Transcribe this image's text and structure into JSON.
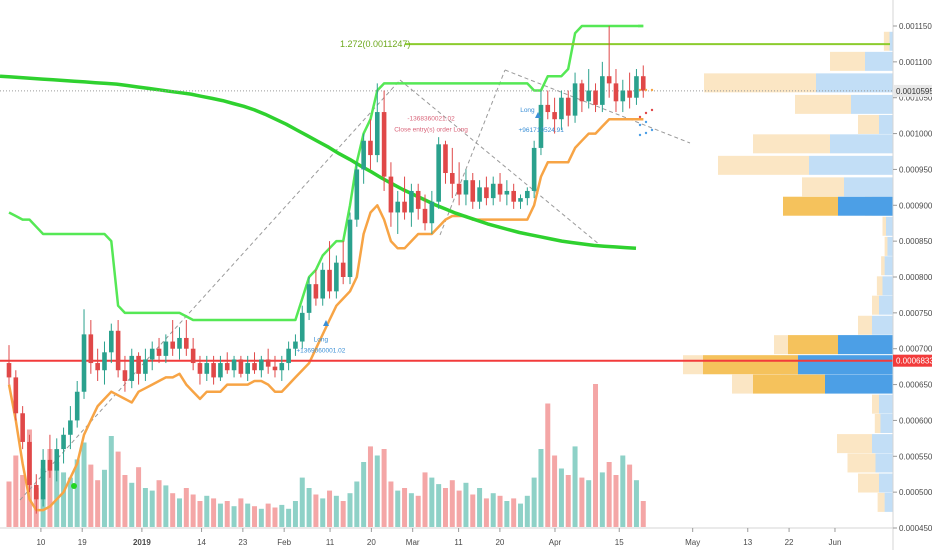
{
  "chart_data": {
    "type": "candlestick",
    "instrument_type": "price chart with volume and volume profile",
    "y_axis": {
      "range": [
        0.00043,
        0.00118
      ],
      "ticks": [
        "0.0011500",
        "0.0011000",
        "0.0010500",
        "0.0010000",
        "0.0009500",
        "0.0009000",
        "0.0008500",
        "0.0008000",
        "0.0007500",
        "0.0007000",
        "0.0006500",
        "0.0006000",
        "0.0005500",
        "0.0005000",
        "0.0004500"
      ]
    },
    "x_axis": {
      "ticks": [
        {
          "label": "10",
          "day": 10
        },
        {
          "label": "19",
          "day": 19
        },
        {
          "label": "2019",
          "day": 32
        },
        {
          "label": "14",
          "day": 45
        },
        {
          "label": "23",
          "day": 54
        },
        {
          "label": "Feb",
          "day": 63
        },
        {
          "label": "11",
          "day": 73
        },
        {
          "label": "20",
          "day": 82
        },
        {
          "label": "Mar",
          "day": 91
        },
        {
          "label": "11",
          "day": 101
        },
        {
          "label": "20",
          "day": 110
        },
        {
          "label": "Apr",
          "day": 122
        },
        {
          "label": "15",
          "day": 136
        },
        {
          "label": "May",
          "day": 152
        },
        {
          "label": "13",
          "day": 164
        },
        {
          "label": "22",
          "day": 173
        },
        {
          "label": "Jun",
          "day": 183
        }
      ]
    },
    "price_labels": {
      "last": "0.0010595",
      "support": "0.0006833"
    },
    "support_level": 0.0006833,
    "fib_level": {
      "label": "1.272(0.0011247)",
      "value": 0.0011247
    },
    "annotations": [
      {
        "text": "Long",
        "day": 71,
        "price": 0.00071
      },
      {
        "text": "+1369060001.02",
        "day": 71,
        "price": 0.000695
      },
      {
        "text": "-1368360021.02",
        "day": 95,
        "price": 0.001018
      },
      {
        "text": "Close entry(s) order Long",
        "day": 95,
        "price": 0.001003
      },
      {
        "text": "Long",
        "day": 116,
        "price": 0.00103
      },
      {
        "text": "+961710524.91",
        "day": 119,
        "price": 0.001002
      }
    ],
    "candles": [
      {
        "o": 0.00068,
        "h": 0.000705,
        "l": 0.00065,
        "c": 0.00066
      },
      {
        "o": 0.00066,
        "h": 0.00067,
        "l": 0.0006,
        "c": 0.00061
      },
      {
        "o": 0.00061,
        "h": 0.00062,
        "l": 0.00056,
        "c": 0.00057
      },
      {
        "o": 0.00057,
        "h": 0.00058,
        "l": 0.0005,
        "c": 0.00051
      },
      {
        "o": 0.00051,
        "h": 0.000525,
        "l": 0.00047,
        "c": 0.00049
      },
      {
        "o": 0.00049,
        "h": 0.00056,
        "l": 0.00048,
        "c": 0.000545
      },
      {
        "o": 0.000545,
        "h": 0.00058,
        "l": 0.00052,
        "c": 0.00053
      },
      {
        "o": 0.00053,
        "h": 0.000575,
        "l": 0.000515,
        "c": 0.00056
      },
      {
        "o": 0.00056,
        "h": 0.00059,
        "l": 0.00054,
        "c": 0.00058
      },
      {
        "o": 0.00058,
        "h": 0.00062,
        "l": 0.00056,
        "c": 0.0006
      },
      {
        "o": 0.0006,
        "h": 0.000655,
        "l": 0.00059,
        "c": 0.00064
      },
      {
        "o": 0.00064,
        "h": 0.000755,
        "l": 0.00063,
        "c": 0.00072
      },
      {
        "o": 0.00072,
        "h": 0.00074,
        "l": 0.000665,
        "c": 0.00068
      },
      {
        "o": 0.00068,
        "h": 0.0007,
        "l": 0.000655,
        "c": 0.00067
      },
      {
        "o": 0.00067,
        "h": 0.00071,
        "l": 0.00065,
        "c": 0.000695
      },
      {
        "o": 0.000695,
        "h": 0.000735,
        "l": 0.00068,
        "c": 0.000725
      },
      {
        "o": 0.000725,
        "h": 0.00074,
        "l": 0.00066,
        "c": 0.00067
      },
      {
        "o": 0.00067,
        "h": 0.00069,
        "l": 0.00064,
        "c": 0.000655
      },
      {
        "o": 0.000655,
        "h": 0.0007,
        "l": 0.000645,
        "c": 0.00069
      },
      {
        "o": 0.00069,
        "h": 0.000695,
        "l": 0.00065,
        "c": 0.000665
      },
      {
        "o": 0.000665,
        "h": 0.0007,
        "l": 0.000655,
        "c": 0.000685
      },
      {
        "o": 0.000685,
        "h": 0.00071,
        "l": 0.00067,
        "c": 0.0007
      },
      {
        "o": 0.0007,
        "h": 0.000715,
        "l": 0.00068,
        "c": 0.00069
      },
      {
        "o": 0.00069,
        "h": 0.00072,
        "l": 0.00068,
        "c": 0.00071
      },
      {
        "o": 0.00071,
        "h": 0.00074,
        "l": 0.00069,
        "c": 0.0007
      },
      {
        "o": 0.0007,
        "h": 0.00073,
        "l": 0.000685,
        "c": 0.000715
      },
      {
        "o": 0.000715,
        "h": 0.00074,
        "l": 0.00069,
        "c": 0.0007
      },
      {
        "o": 0.0007,
        "h": 0.000715,
        "l": 0.00067,
        "c": 0.00068
      },
      {
        "o": 0.00068,
        "h": 0.00069,
        "l": 0.00065,
        "c": 0.000665
      },
      {
        "o": 0.000665,
        "h": 0.00069,
        "l": 0.000655,
        "c": 0.00068
      },
      {
        "o": 0.00068,
        "h": 0.00069,
        "l": 0.00065,
        "c": 0.00066
      },
      {
        "o": 0.00066,
        "h": 0.00069,
        "l": 0.000655,
        "c": 0.00068
      },
      {
        "o": 0.00068,
        "h": 0.000695,
        "l": 0.000665,
        "c": 0.00067
      },
      {
        "o": 0.00067,
        "h": 0.00069,
        "l": 0.00066,
        "c": 0.000685
      },
      {
        "o": 0.000685,
        "h": 0.00069,
        "l": 0.00066,
        "c": 0.000665
      },
      {
        "o": 0.000665,
        "h": 0.00069,
        "l": 0.000655,
        "c": 0.00068
      },
      {
        "o": 0.00068,
        "h": 0.000695,
        "l": 0.000665,
        "c": 0.00067
      },
      {
        "o": 0.00067,
        "h": 0.00069,
        "l": 0.00066,
        "c": 0.000685
      },
      {
        "o": 0.000685,
        "h": 0.0007,
        "l": 0.000665,
        "c": 0.000675
      },
      {
        "o": 0.000675,
        "h": 0.00069,
        "l": 0.00066,
        "c": 0.00067
      },
      {
        "o": 0.00067,
        "h": 0.00069,
        "l": 0.000655,
        "c": 0.00068
      },
      {
        "o": 0.00068,
        "h": 0.00071,
        "l": 0.00067,
        "c": 0.0007
      },
      {
        "o": 0.0007,
        "h": 0.00072,
        "l": 0.00069,
        "c": 0.00071
      },
      {
        "o": 0.00071,
        "h": 0.00076,
        "l": 0.0007,
        "c": 0.00075
      },
      {
        "o": 0.00075,
        "h": 0.0008,
        "l": 0.00074,
        "c": 0.00079
      },
      {
        "o": 0.00079,
        "h": 0.00081,
        "l": 0.00076,
        "c": 0.00077
      },
      {
        "o": 0.00077,
        "h": 0.00082,
        "l": 0.00076,
        "c": 0.00081
      },
      {
        "o": 0.00081,
        "h": 0.00085,
        "l": 0.00077,
        "c": 0.00078
      },
      {
        "o": 0.00078,
        "h": 0.00083,
        "l": 0.00077,
        "c": 0.00082
      },
      {
        "o": 0.00082,
        "h": 0.00085,
        "l": 0.00079,
        "c": 0.0008
      },
      {
        "o": 0.0008,
        "h": 0.00089,
        "l": 0.00079,
        "c": 0.00088
      },
      {
        "o": 0.00088,
        "h": 0.00096,
        "l": 0.00087,
        "c": 0.00095
      },
      {
        "o": 0.00095,
        "h": 0.001,
        "l": 0.00093,
        "c": 0.00099
      },
      {
        "o": 0.00099,
        "h": 0.00102,
        "l": 0.00095,
        "c": 0.00097
      },
      {
        "o": 0.00097,
        "h": 0.00107,
        "l": 0.00096,
        "c": 0.00103
      },
      {
        "o": 0.00103,
        "h": 0.00106,
        "l": 0.00092,
        "c": 0.00094
      },
      {
        "o": 0.00094,
        "h": 0.00096,
        "l": 0.00087,
        "c": 0.00089
      },
      {
        "o": 0.00089,
        "h": 0.00092,
        "l": 0.00086,
        "c": 0.000905
      },
      {
        "o": 0.000905,
        "h": 0.00094,
        "l": 0.00088,
        "c": 0.00089
      },
      {
        "o": 0.00089,
        "h": 0.00093,
        "l": 0.00087,
        "c": 0.00092
      },
      {
        "o": 0.00092,
        "h": 0.00093,
        "l": 0.00088,
        "c": 0.000895
      },
      {
        "o": 0.000895,
        "h": 0.000915,
        "l": 0.000865,
        "c": 0.000875
      },
      {
        "o": 0.000875,
        "h": 0.00092,
        "l": 0.00086,
        "c": 0.000905
      },
      {
        "o": 0.000905,
        "h": 0.000995,
        "l": 0.000895,
        "c": 0.000985
      },
      {
        "o": 0.000985,
        "h": 0.00099,
        "l": 0.00093,
        "c": 0.000945
      },
      {
        "o": 0.000945,
        "h": 0.00098,
        "l": 0.00091,
        "c": 0.00093
      },
      {
        "o": 0.00093,
        "h": 0.00096,
        "l": 0.0009,
        "c": 0.000915
      },
      {
        "o": 0.000915,
        "h": 0.00095,
        "l": 0.0009,
        "c": 0.000935
      },
      {
        "o": 0.000935,
        "h": 0.000945,
        "l": 0.000895,
        "c": 0.000905
      },
      {
        "o": 0.000905,
        "h": 0.000935,
        "l": 0.000895,
        "c": 0.000925
      },
      {
        "o": 0.000925,
        "h": 0.00094,
        "l": 0.0009,
        "c": 0.00091
      },
      {
        "o": 0.00091,
        "h": 0.00094,
        "l": 0.0009,
        "c": 0.00093
      },
      {
        "o": 0.00093,
        "h": 0.000945,
        "l": 0.000905,
        "c": 0.000915
      },
      {
        "o": 0.000915,
        "h": 0.000935,
        "l": 0.0009,
        "c": 0.00092
      },
      {
        "o": 0.00092,
        "h": 0.00093,
        "l": 0.000895,
        "c": 0.000905
      },
      {
        "o": 0.000905,
        "h": 0.000915,
        "l": 0.000895,
        "c": 0.00091
      },
      {
        "o": 0.00091,
        "h": 0.000925,
        "l": 0.0009,
        "c": 0.00092
      },
      {
        "o": 0.00092,
        "h": 0.00099,
        "l": 0.00091,
        "c": 0.00098
      },
      {
        "o": 0.00098,
        "h": 0.00106,
        "l": 0.00097,
        "c": 0.00104
      },
      {
        "o": 0.00104,
        "h": 0.00106,
        "l": 0.00102,
        "c": 0.00103
      },
      {
        "o": 0.00103,
        "h": 0.00105,
        "l": 0.001,
        "c": 0.00102
      },
      {
        "o": 0.00102,
        "h": 0.00106,
        "l": 0.001005,
        "c": 0.00105
      },
      {
        "o": 0.00105,
        "h": 0.00106,
        "l": 0.00101,
        "c": 0.001025
      },
      {
        "o": 0.001025,
        "h": 0.001085,
        "l": 0.001015,
        "c": 0.00107
      },
      {
        "o": 0.00107,
        "h": 0.001075,
        "l": 0.00103,
        "c": 0.001045
      },
      {
        "o": 0.001045,
        "h": 0.00109,
        "l": 0.001035,
        "c": 0.00106
      },
      {
        "o": 0.00106,
        "h": 0.00107,
        "l": 0.00103,
        "c": 0.00104
      },
      {
        "o": 0.00104,
        "h": 0.0011,
        "l": 0.00103,
        "c": 0.00108
      },
      {
        "o": 0.00108,
        "h": 0.00115,
        "l": 0.00105,
        "c": 0.00107
      },
      {
        "o": 0.00107,
        "h": 0.00109,
        "l": 0.00103,
        "c": 0.001045
      },
      {
        "o": 0.001045,
        "h": 0.001075,
        "l": 0.00103,
        "c": 0.00106
      },
      {
        "o": 0.00106,
        "h": 0.001085,
        "l": 0.001035,
        "c": 0.00105
      },
      {
        "o": 0.00105,
        "h": 0.00109,
        "l": 0.00104,
        "c": 0.00108
      },
      {
        "o": 0.00108,
        "h": 0.001095,
        "l": 0.00105,
        "c": 0.00106
      }
    ],
    "volume": [
      0.35,
      0.55,
      0.4,
      0.75,
      0.3,
      0.45,
      0.6,
      0.5,
      0.42,
      0.38,
      0.52,
      0.65,
      0.48,
      0.36,
      0.44,
      0.7,
      0.58,
      0.4,
      0.34,
      0.46,
      0.3,
      0.28,
      0.36,
      0.32,
      0.26,
      0.22,
      0.3,
      0.25,
      0.2,
      0.24,
      0.22,
      0.18,
      0.2,
      0.16,
      0.22,
      0.18,
      0.16,
      0.14,
      0.18,
      0.15,
      0.17,
      0.14,
      0.2,
      0.38,
      0.3,
      0.25,
      0.22,
      0.28,
      0.24,
      0.2,
      0.26,
      0.35,
      0.5,
      0.62,
      0.55,
      0.6,
      0.35,
      0.28,
      0.3,
      0.26,
      0.24,
      0.42,
      0.38,
      0.33,
      0.3,
      0.36,
      0.28,
      0.34,
      0.25,
      0.3,
      0.22,
      0.26,
      0.24,
      0.2,
      0.22,
      0.18,
      0.24,
      0.38,
      0.6,
      0.95,
      0.55,
      0.45,
      0.4,
      0.62,
      0.38,
      0.36,
      1.1,
      0.42,
      0.5,
      0.4,
      0.55,
      0.48,
      0.36,
      0.2
    ],
    "trail_orange": [
      0.00065,
      0.0006,
      0.00054,
      0.00049,
      0.000475,
      0.000475,
      0.00048,
      0.00049,
      0.0005,
      0.00052,
      0.00054,
      0.00058,
      0.0006,
      0.00062,
      0.00063,
      0.00064,
      0.000635,
      0.00063,
      0.000625,
      0.00064,
      0.000645,
      0.00065,
      0.000655,
      0.00066,
      0.00066,
      0.000665,
      0.00065,
      0.00064,
      0.00063,
      0.00064,
      0.00064,
      0.00064,
      0.00065,
      0.00065,
      0.00065,
      0.00065,
      0.000655,
      0.000655,
      0.00065,
      0.00064,
      0.00064,
      0.00065,
      0.00066,
      0.00067,
      0.00068,
      0.0007,
      0.00072,
      0.00074,
      0.00076,
      0.00077,
      0.00078,
      0.0008,
      0.00086,
      0.00089,
      0.0009,
      0.00088,
      0.00085,
      0.00084,
      0.00084,
      0.00085,
      0.00086,
      0.00086,
      0.00086,
      0.00087,
      0.00088,
      0.000885,
      0.000885,
      0.000885,
      0.00088,
      0.00088,
      0.00088,
      0.00088,
      0.00088,
      0.00088,
      0.00088,
      0.00088,
      0.00088,
      0.0009,
      0.00094,
      0.00096,
      0.00096,
      0.00096,
      0.00096,
      0.00098,
      0.00099,
      0.001,
      0.001,
      0.00101,
      0.00102,
      0.00102,
      0.00102,
      0.00102,
      0.00102,
      0.00102
    ],
    "channel_green": [
      0.00089,
      0.000885,
      0.00088,
      0.00088,
      0.00087,
      0.00086,
      0.00086,
      0.00086,
      0.00086,
      0.00086,
      0.00086,
      0.00086,
      0.00086,
      0.00086,
      0.00086,
      0.00085,
      0.00076,
      0.00075,
      0.00075,
      0.00075,
      0.00075,
      0.00075,
      0.00075,
      0.00075,
      0.00075,
      0.00075,
      0.000745,
      0.00074,
      0.00074,
      0.00074,
      0.00074,
      0.00074,
      0.00074,
      0.00074,
      0.00074,
      0.00074,
      0.00074,
      0.00074,
      0.00074,
      0.00074,
      0.00074,
      0.00074,
      0.00074,
      0.00077,
      0.0008,
      0.00081,
      0.00083,
      0.00084,
      0.00085,
      0.00085,
      0.0009,
      0.00096,
      0.001,
      0.00102,
      0.00106,
      0.00107,
      0.00107,
      0.00107,
      0.00107,
      0.00107,
      0.00107,
      0.00107,
      0.00107,
      0.00107,
      0.00107,
      0.00107,
      0.00107,
      0.00107,
      0.00107,
      0.00107,
      0.00107,
      0.00107,
      0.00107,
      0.00107,
      0.00107,
      0.00107,
      0.00107,
      0.00106,
      0.00106,
      0.00108,
      0.00108,
      0.00108,
      0.00109,
      0.00114,
      0.00115,
      0.00115,
      0.00115,
      0.00115,
      0.00115,
      0.00115,
      0.00115,
      0.00115,
      0.00115,
      0.00115
    ],
    "ma_green": [
      0.00108,
      0.001079,
      0.001078,
      0.001077,
      0.001076,
      0.001075,
      0.001074,
      0.001073,
      0.001072,
      0.001071,
      0.00107,
      0.001069,
      0.001067,
      0.001065,
      0.001063,
      0.001061,
      0.001059,
      0.001057,
      0.001055,
      0.001052,
      0.001049,
      0.001046,
      0.001042,
      0.001038,
      0.001033,
      0.001027,
      0.00102,
      0.001013,
      0.001005,
      0.000997,
      0.000989,
      0.000981,
      0.000972,
      0.000964,
      0.000955,
      0.000947,
      0.000938,
      0.00093,
      0.000922,
      0.000915,
      0.000908,
      0.000901,
      0.000895,
      0.000889,
      0.000884,
      0.000879,
      0.000874,
      0.00087,
      0.000866,
      0.000862,
      0.000859,
      0.000856,
      0.000853,
      0.00085,
      0.000848,
      0.000846,
      0.000844,
      0.000843,
      0.000842,
      0.000841,
      0.00084
    ],
    "volume_profile": [
      {
        "price": 0.001128,
        "a": 0.008,
        "b": 0.005
      },
      {
        "price": 0.0011,
        "a": 0.05,
        "b": 0.04
      },
      {
        "price": 0.00107,
        "a": 0.16,
        "b": 0.11
      },
      {
        "price": 0.00104,
        "a": 0.08,
        "b": 0.06
      },
      {
        "price": 0.001012,
        "a": 0.03,
        "b": 0.02
      },
      {
        "price": 0.000985,
        "a": 0.11,
        "b": 0.09
      },
      {
        "price": 0.000955,
        "a": 0.13,
        "b": 0.12
      },
      {
        "price": 0.000925,
        "a": 0.06,
        "b": 0.07
      },
      {
        "price": 0.000898,
        "a": 0.01,
        "b": 0.03
      },
      {
        "price": 0.00087,
        "a": 0.005,
        "b": 0.01
      },
      {
        "price": 0.000842,
        "a": 0.004,
        "b": 0.008
      },
      {
        "price": 0.000815,
        "a": 0.005,
        "b": 0.012
      },
      {
        "price": 0.000787,
        "a": 0.008,
        "b": 0.015
      },
      {
        "price": 0.00076,
        "a": 0.01,
        "b": 0.02
      },
      {
        "price": 0.000732,
        "a": 0.02,
        "b": 0.03
      },
      {
        "price": 0.000705,
        "a": 0.08,
        "b": 0.09
      },
      {
        "price": 0.000677,
        "a": 0.14,
        "b": 0.16
      },
      {
        "price": 0.00065,
        "a": 0.12,
        "b": 0.11
      },
      {
        "price": 0.000622,
        "a": 0.01,
        "b": 0.02
      },
      {
        "price": 0.000595,
        "a": 0.008,
        "b": 0.018
      },
      {
        "price": 0.000567,
        "a": 0.05,
        "b": 0.03
      },
      {
        "price": 0.00054,
        "a": 0.04,
        "b": 0.025
      },
      {
        "price": 0.000512,
        "a": 0.03,
        "b": 0.02
      },
      {
        "price": 0.000485,
        "a": 0.01,
        "b": 0.012
      }
    ]
  }
}
